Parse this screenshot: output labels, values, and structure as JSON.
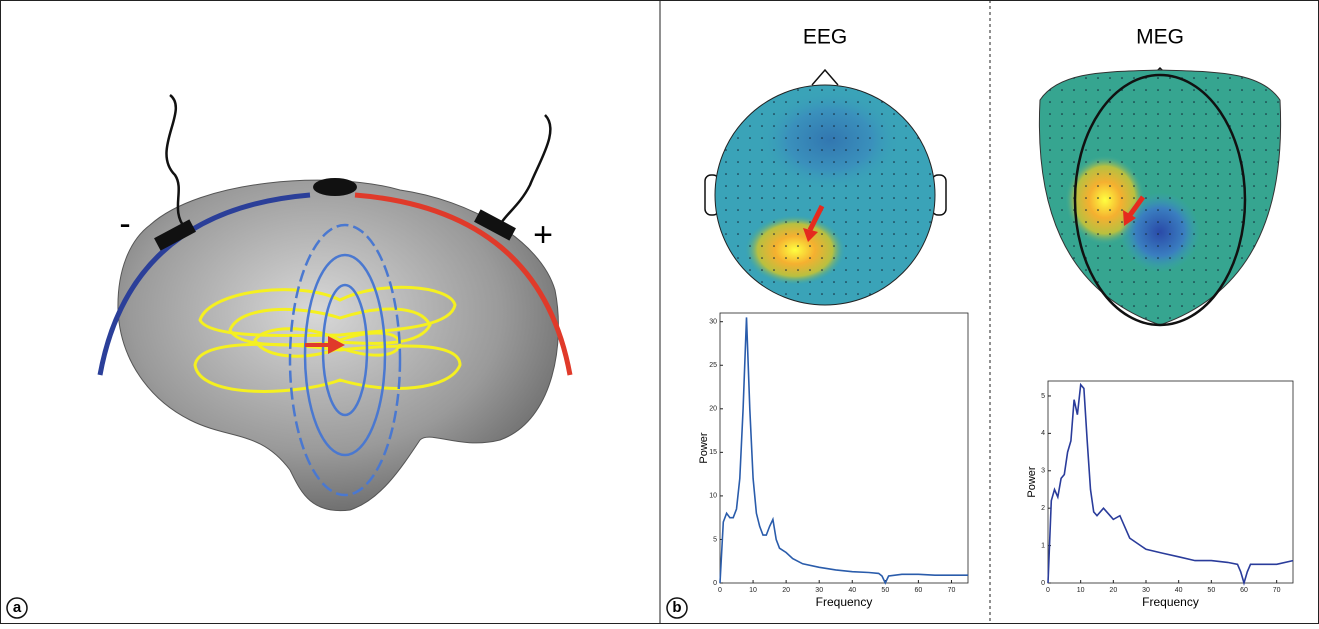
{
  "panel_a": {
    "label": "a",
    "minus": "-",
    "plus": "+"
  },
  "panel_b": {
    "label": "b",
    "titles": [
      "EEG",
      "MEG"
    ]
  },
  "chart_data": [
    {
      "type": "line",
      "x_label": "Frequency",
      "y_label": "Power",
      "color": "#2a5cab",
      "x": [
        0,
        1,
        2,
        3,
        4,
        5,
        6,
        7,
        8,
        9,
        10,
        11,
        12,
        13,
        14,
        15,
        16,
        17,
        18,
        20,
        22,
        25,
        30,
        35,
        40,
        45,
        48,
        49,
        50,
        51,
        55,
        60,
        65,
        70,
        75
      ],
      "values": [
        0,
        7,
        8,
        7.5,
        7.5,
        8.5,
        12,
        20,
        30.5,
        20,
        12,
        8,
        6.5,
        5.5,
        5.5,
        6.5,
        7.3,
        5,
        4,
        3.5,
        2.8,
        2.2,
        1.8,
        1.5,
        1.3,
        1.2,
        1.1,
        0.8,
        0,
        0.8,
        1.0,
        1.0,
        0.9,
        0.9,
        0.9
      ],
      "xlim": [
        0,
        75
      ],
      "ylim": [
        0,
        31
      ],
      "xticks": [
        0,
        10,
        20,
        30,
        40,
        50,
        60,
        70
      ],
      "yticks": [
        0,
        5,
        10,
        15,
        20,
        25,
        30
      ]
    },
    {
      "type": "line",
      "x_label": "Frequency",
      "y_label": "Power",
      "color": "#2a3c9b",
      "x": [
        0,
        1,
        2,
        3,
        4,
        5,
        6,
        7,
        8,
        9,
        10,
        11,
        12,
        13,
        14,
        15,
        17,
        19,
        20,
        22,
        24,
        25,
        30,
        35,
        40,
        45,
        50,
        55,
        58,
        59,
        60,
        61,
        62,
        65,
        70,
        75
      ],
      "values": [
        0,
        2.2,
        2.5,
        2.3,
        2.8,
        2.9,
        3.5,
        3.8,
        4.9,
        4.5,
        5.3,
        5.2,
        3.8,
        2.5,
        1.9,
        1.8,
        2.0,
        1.8,
        1.7,
        1.8,
        1.4,
        1.2,
        0.9,
        0.8,
        0.7,
        0.6,
        0.6,
        0.55,
        0.5,
        0.3,
        0,
        0.3,
        0.5,
        0.5,
        0.5,
        0.6
      ],
      "xlim": [
        0,
        75
      ],
      "ylim": [
        0,
        5.4
      ],
      "xticks": [
        0,
        10,
        20,
        30,
        40,
        50,
        60,
        70
      ],
      "yticks": [
        0,
        1,
        2,
        3,
        4,
        5
      ]
    }
  ]
}
